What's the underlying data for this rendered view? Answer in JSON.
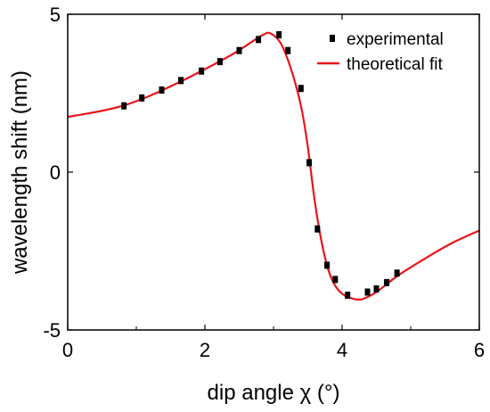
{
  "chart_data": {
    "type": "scatter",
    "xlabel": "dip angle χ (°)",
    "ylabel": "wavelength shift (nm)",
    "xlim": [
      0,
      6
    ],
    "ylim": [
      -5,
      5
    ],
    "x_ticks": [
      "0",
      "2",
      "4",
      "6"
    ],
    "y_ticks": [
      "5",
      "0",
      "-5"
    ],
    "legend_position": "top-right",
    "series": [
      {
        "name": "experimental",
        "style": "square-markers",
        "color": "#000000",
        "points": [
          [
            0.82,
            2.1
          ],
          [
            1.08,
            2.35
          ],
          [
            1.37,
            2.6
          ],
          [
            1.65,
            2.9
          ],
          [
            1.95,
            3.2
          ],
          [
            2.22,
            3.5
          ],
          [
            2.5,
            3.85
          ],
          [
            2.78,
            4.2
          ],
          [
            3.08,
            4.35
          ],
          [
            3.21,
            3.85
          ],
          [
            3.4,
            2.65
          ],
          [
            3.52,
            0.3
          ],
          [
            3.64,
            -1.8
          ],
          [
            3.78,
            -2.95
          ],
          [
            3.9,
            -3.4
          ],
          [
            4.08,
            -3.9
          ],
          [
            4.37,
            -3.8
          ],
          [
            4.5,
            -3.7
          ],
          [
            4.65,
            -3.5
          ],
          [
            4.8,
            -3.2
          ]
        ]
      },
      {
        "name": "theoretical fit",
        "style": "line",
        "color": "#e8141b",
        "points": [
          [
            0,
            1.75
          ],
          [
            0.4,
            1.9
          ],
          [
            0.8,
            2.1
          ],
          [
            1.2,
            2.42
          ],
          [
            1.6,
            2.82
          ],
          [
            2.0,
            3.26
          ],
          [
            2.4,
            3.73
          ],
          [
            2.7,
            4.15
          ],
          [
            2.85,
            4.35
          ],
          [
            2.95,
            4.4
          ],
          [
            3.1,
            4.1
          ],
          [
            3.25,
            3.3
          ],
          [
            3.4,
            2.1
          ],
          [
            3.5,
            0.8
          ],
          [
            3.6,
            -0.9
          ],
          [
            3.7,
            -2.2
          ],
          [
            3.8,
            -3.1
          ],
          [
            3.9,
            -3.6
          ],
          [
            4.0,
            -3.85
          ],
          [
            4.1,
            -3.97
          ],
          [
            4.2,
            -4.03
          ],
          [
            4.3,
            -4.02
          ],
          [
            4.5,
            -3.8
          ],
          [
            4.8,
            -3.3
          ],
          [
            5.2,
            -2.75
          ],
          [
            5.6,
            -2.25
          ],
          [
            6.0,
            -1.85
          ]
        ]
      }
    ]
  }
}
